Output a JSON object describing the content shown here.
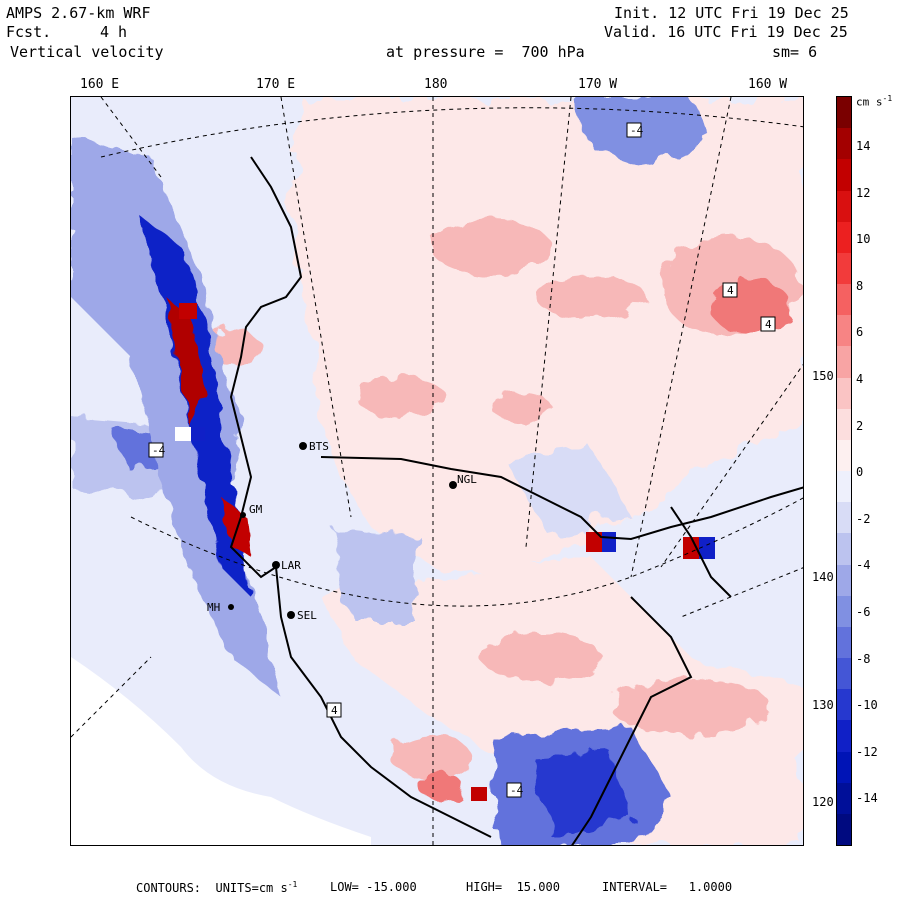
{
  "header": {
    "model": "AMPS 2.67-km WRF",
    "fcst_label": "Fcst.",
    "fcst_value": "4 h",
    "field": "Vertical velocity",
    "init": "Init. 12 UTC Fri 19 Dec 25",
    "valid": "Valid. 16 UTC Fri 19 Dec 25",
    "pressure": "at pressure =  700 hPa",
    "smoothing": "sm= 6"
  },
  "longitude_labels": [
    "160 E",
    "170 E",
    "180",
    "170 W",
    "160 W"
  ],
  "latitude_labels": [
    "150 W",
    "140 W",
    "130 W",
    "120 W"
  ],
  "stations": [
    "BTS",
    "NGL",
    "GM",
    "LAR",
    "SEL",
    "MH"
  ],
  "contour_labels": [
    "-4",
    "4"
  ],
  "colorbar": {
    "units": "cm s",
    "units_exp": "-1",
    "ticks": [
      "14",
      "12",
      "10",
      "8",
      "6",
      "4",
      "2",
      "0",
      "-2",
      "-4",
      "-6",
      "-8",
      "-10",
      "-12",
      "-14"
    ],
    "colors": [
      "#7a0000",
      "#a30000",
      "#c20000",
      "#d91010",
      "#ec2020",
      "#f23b3b",
      "#f56161",
      "#f78484",
      "#f8a4a4",
      "#fac4c4",
      "#fcdede",
      "#fdf0f0",
      "#eef0fc",
      "#d8dcf6",
      "#bcc3ef",
      "#9ea8e8",
      "#8090e2",
      "#6272dc",
      "#4456d6",
      "#2638cf",
      "#1020c7",
      "#0014b6",
      "#000f99",
      "#000a80"
    ]
  },
  "footer": {
    "prefix": "CONTOURS:  UNITS=cm s",
    "exp": "-1",
    "low": "LOW= -15.000",
    "high": "HIGH=  15.000",
    "interval": "INTERVAL=   1.0000"
  }
}
